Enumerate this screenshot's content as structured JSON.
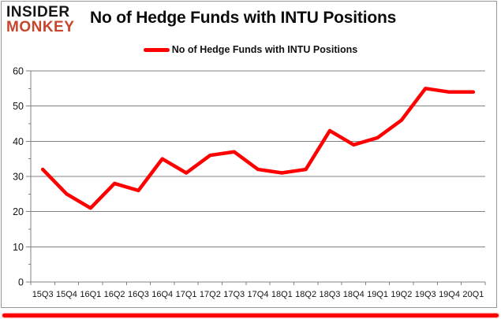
{
  "brand": {
    "line1": "INSIDER",
    "line2": "MONKEY",
    "color": "#c7452c"
  },
  "header": {
    "title": "No of Hedge Funds with INTU Positions"
  },
  "legend": {
    "label": "No of Hedge Funds with INTU Positions",
    "line_color": "#ff0000"
  },
  "chart_data": {
    "type": "line",
    "title": "No of Hedge Funds with INTU Positions",
    "categories": [
      "15Q3",
      "15Q4",
      "16Q1",
      "16Q2",
      "16Q3",
      "16Q4",
      "17Q1",
      "17Q2",
      "17Q3",
      "17Q4",
      "18Q1",
      "18Q2",
      "18Q3",
      "18Q4",
      "19Q1",
      "19Q2",
      "19Q3",
      "19Q4",
      "20Q1"
    ],
    "series": [
      {
        "name": "No of Hedge Funds with INTU Positions",
        "color": "#ff0000",
        "values": [
          32,
          25,
          21,
          28,
          26,
          35,
          31,
          36,
          37,
          32,
          31,
          32,
          43,
          39,
          41,
          46,
          55,
          54,
          54
        ]
      }
    ],
    "xlabel": "",
    "ylabel": "",
    "ylim": [
      0,
      60
    ],
    "ytick_step": 10,
    "ytick_minor_step": 5,
    "ytick_labels": [
      "0",
      "10",
      "20",
      "30",
      "40",
      "50",
      "60"
    ],
    "grid": true,
    "gridline_color": "#808080",
    "axis_color": "#808080",
    "legend_position": "top-center"
  },
  "footer": {
    "accent_bar_color": "#ff0000"
  }
}
